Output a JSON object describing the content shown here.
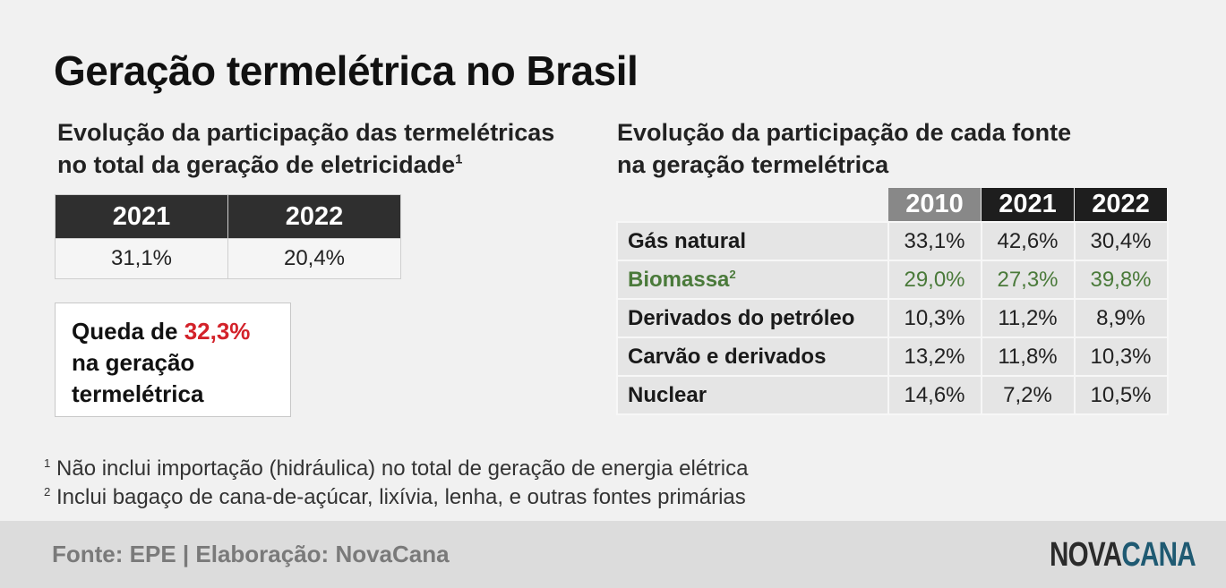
{
  "title": "Geração termelétrica no Brasil",
  "left": {
    "subtitle_line1": "Evolução da participação das termelétricas",
    "subtitle_line2": "no total da geração de eletricidade",
    "subtitle_sup": "1",
    "years": [
      "2021",
      "2022"
    ],
    "values": [
      "31,1%",
      "20,4%"
    ]
  },
  "callout": {
    "prefix": "Queda de ",
    "highlight": "32,3%",
    "line2": "na geração",
    "line3": "termelétrica",
    "highlight_color": "#d3222a"
  },
  "right": {
    "subtitle_line1": "Evolução da participação de cada fonte",
    "subtitle_line2": "na geração termelétrica",
    "years": [
      "2010",
      "2021",
      "2022"
    ],
    "rows": [
      {
        "label": "Gás natural",
        "sup": "",
        "values": [
          "33,1%",
          "42,6%",
          "30,4%"
        ]
      },
      {
        "label": "Biomassa",
        "sup": "2",
        "values": [
          "29,0%",
          "27,3%",
          "39,8%"
        ]
      },
      {
        "label": "Derivados do petróleo",
        "sup": "",
        "values": [
          "10,3%",
          "11,2%",
          "8,9%"
        ]
      },
      {
        "label": "Carvão e derivados",
        "sup": "",
        "values": [
          "13,2%",
          "11,8%",
          "10,3%"
        ]
      },
      {
        "label": "Nuclear",
        "sup": "",
        "values": [
          "14,6%",
          "7,2%",
          "10,5%"
        ]
      }
    ],
    "biomassa_color": "#4a7a3a"
  },
  "notes": [
    {
      "mark": "1",
      "text": "Não inclui importação (hidráulica) no total de geração de energia elétrica"
    },
    {
      "mark": "2",
      "text": "Inclui bagaço de cana-de-açúcar, lixívia, lenha, e outras fontes primárias"
    }
  ],
  "footer": {
    "source": "Fonte: EPE | Elaboração: NovaCana",
    "logo_part1": "NOVA",
    "logo_part2": "CANA"
  },
  "chart_data": [
    {
      "type": "table",
      "title": "Evolução da participação das termelétricas no total da geração de eletricidade",
      "columns": [
        "2021",
        "2022"
      ],
      "values": [
        31.1,
        20.4
      ],
      "unit": "%"
    },
    {
      "type": "table",
      "title": "Evolução da participação de cada fonte na geração termelétrica",
      "categories": [
        "Gás natural",
        "Biomassa",
        "Derivados do petróleo",
        "Carvão e derivados",
        "Nuclear"
      ],
      "columns": [
        "2010",
        "2021",
        "2022"
      ],
      "series": [
        {
          "name": "2010",
          "values": [
            33.1,
            29.0,
            10.3,
            13.2,
            14.6
          ]
        },
        {
          "name": "2021",
          "values": [
            42.6,
            27.3,
            11.2,
            11.8,
            7.2
          ]
        },
        {
          "name": "2022",
          "values": [
            30.4,
            39.8,
            8.9,
            10.3,
            10.5
          ]
        }
      ],
      "unit": "%"
    }
  ]
}
